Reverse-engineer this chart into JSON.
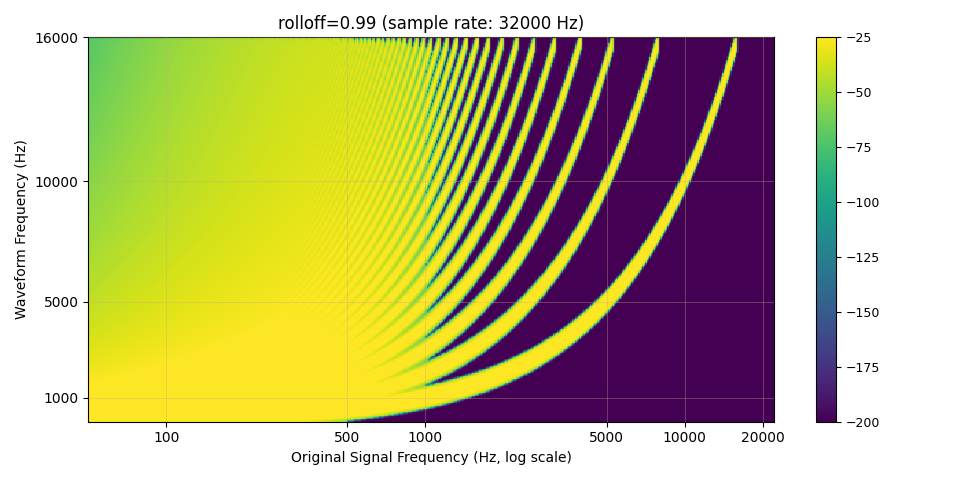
{
  "title": "rolloff=0.99 (sample rate: 32000 Hz)",
  "xlabel": "Original Signal Frequency (Hz, log scale)",
  "ylabel": "Waveform Frequency (Hz)",
  "sample_rate": 32000,
  "rolloff": 0.99,
  "freq_min": 50,
  "freq_max": 22050,
  "n_freq_cols": 500,
  "wf_freq_min": 0,
  "wf_freq_max": 16000,
  "n_wf_rows": 500,
  "vmin": -200,
  "vmax": -25,
  "cmap": "viridis",
  "colorbar_ticks": [
    -25,
    -50,
    -75,
    -100,
    -125,
    -150,
    -175,
    -200
  ],
  "yticks": [
    1000,
    5000,
    10000,
    16000
  ],
  "xticks": [
    100,
    500,
    1000,
    5000,
    10000,
    20000
  ],
  "xtick_labels": [
    "100",
    "500",
    "1000",
    "5000",
    "10000",
    "20000"
  ],
  "grid_color": "#c8a882",
  "grid_alpha": 0.5,
  "figsize": [
    9.6,
    4.8
  ],
  "dpi": 100
}
